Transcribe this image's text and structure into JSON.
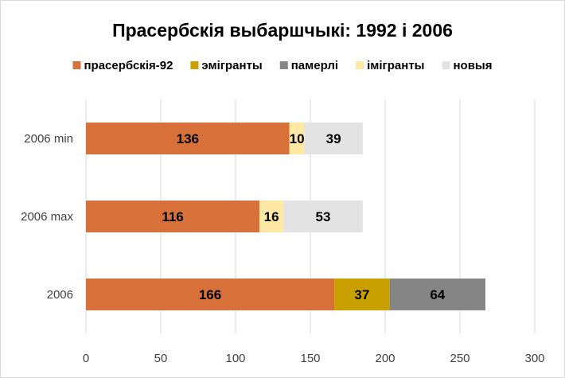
{
  "chart_data": {
    "type": "bar",
    "orientation": "horizontal",
    "stacked": true,
    "title": "Прасербскія выбаршчыкі: 1992 і 2006",
    "categories": [
      "2006 min",
      "2006 max",
      "2006"
    ],
    "series": [
      {
        "name": "прасербскія-92",
        "color": "#d8703a",
        "values": [
          136,
          116,
          166
        ]
      },
      {
        "name": "эмігранты",
        "color": "#c9a000",
        "values": [
          null,
          null,
          37
        ]
      },
      {
        "name": "памерлі",
        "color": "#858585",
        "values": [
          null,
          null,
          64
        ]
      },
      {
        "name": "імігранты",
        "color": "#ffe8a3",
        "values": [
          10,
          16,
          null
        ]
      },
      {
        "name": "новыя",
        "color": "#e3e3e3",
        "values": [
          39,
          53,
          null
        ]
      }
    ],
    "xlim": [
      0,
      300
    ],
    "xticks": [
      "0",
      "50",
      "100",
      "150",
      "200",
      "250",
      "300"
    ],
    "grid": "vertical",
    "legend": "top",
    "data_labels": true
  }
}
